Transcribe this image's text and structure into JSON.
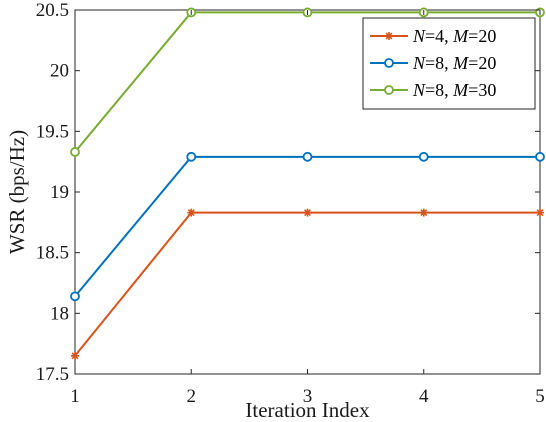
{
  "chart_data": {
    "type": "line",
    "xlabel": "Iteration Index",
    "ylabel": "WSR (bps/Hz)",
    "xlim": [
      1,
      5
    ],
    "ylim": [
      17.5,
      20.5
    ],
    "x_ticks": [
      1,
      2,
      3,
      4,
      5
    ],
    "y_ticks": [
      17.5,
      18,
      18.5,
      19,
      19.5,
      20,
      20.5
    ],
    "grid": false,
    "legend_position": "top-right",
    "x": [
      1,
      2,
      3,
      4,
      5
    ],
    "series": [
      {
        "name": "N=4, M=20",
        "legend": {
          "v1": "N",
          "eq1": "=4, ",
          "v2": "M",
          "eq2": "=20"
        },
        "color": "#D95319",
        "marker": "asterisk",
        "values": [
          17.65,
          18.83,
          18.83,
          18.83,
          18.83
        ]
      },
      {
        "name": "N=8, M=20",
        "legend": {
          "v1": "N",
          "eq1": "=8, ",
          "v2": "M",
          "eq2": "=20"
        },
        "color": "#0072BD",
        "marker": "circle",
        "values": [
          18.14,
          19.29,
          19.29,
          19.29,
          19.29
        ]
      },
      {
        "name": "N=8, M=30",
        "legend": {
          "v1": "N",
          "eq1": "=8, ",
          "v2": "M",
          "eq2": "=30"
        },
        "color": "#77AC30",
        "marker": "circle",
        "values": [
          19.33,
          20.48,
          20.48,
          20.48,
          20.48
        ]
      }
    ]
  }
}
